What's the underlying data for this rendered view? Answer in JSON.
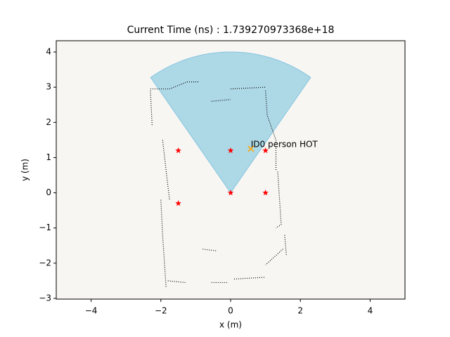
{
  "chart_data": {
    "type": "scatter",
    "title": "Current Time (ns) : 1.739270973368e+18",
    "xlabel": "x (m)",
    "ylabel": "y (m)",
    "xlim": [
      -5,
      5
    ],
    "ylim": [
      -3.02,
      4.32
    ],
    "xticks": [
      {
        "value": -4,
        "label": "−4"
      },
      {
        "value": -2,
        "label": "−2"
      },
      0,
      2,
      4
    ],
    "yticks": [
      {
        "value": -3,
        "label": "−3"
      },
      {
        "value": -2,
        "label": "−2"
      },
      {
        "value": -1,
        "label": "−1"
      },
      0,
      1,
      2,
      3,
      4
    ],
    "background": "#f7f6f2",
    "wedge": {
      "x": 0,
      "y": 0,
      "radius": 4,
      "theta1": 55,
      "theta2": 125,
      "color": "#add8e6"
    },
    "map": {
      "color": "#000000",
      "x": [
        -2.3,
        -2.25,
        null,
        -2.3,
        -1.75,
        -1.25,
        -0.9,
        null,
        -0.55,
        0,
        null,
        0,
        1.0,
        null,
        1.0,
        1.05,
        1.3,
        1.3,
        null,
        1.35,
        1.45,
        1.3,
        null,
        1.55,
        1.6,
        null,
        1.5,
        1.0,
        null,
        -1.95,
        -1.8,
        -1.75,
        null,
        -2.0,
        -1.95,
        -1.85,
        null,
        -1.8,
        -1.3,
        null,
        -0.55,
        -0.1,
        null,
        0.1,
        1.0,
        null,
        -0.8,
        -0.4
      ],
      "y": [
        2.9,
        1.9,
        null,
        2.95,
        2.95,
        3.15,
        3.15,
        null,
        2.6,
        2.65,
        null,
        2.95,
        3.0,
        null,
        2.9,
        2.2,
        1.5,
        0.65,
        null,
        0.6,
        -0.9,
        -1.0,
        null,
        -1.2,
        -1.8,
        null,
        -1.6,
        -2.05,
        null,
        1.5,
        0.2,
        -0.2,
        null,
        -0.2,
        -1.2,
        -2.7,
        null,
        -2.5,
        -2.55,
        null,
        -2.55,
        -2.55,
        null,
        -2.45,
        -2.4,
        null,
        -1.6,
        -1.65
      ]
    },
    "markers": {
      "color": "#ff0000",
      "x": [
        -1.5,
        0,
        1,
        0,
        1,
        -1.5
      ],
      "y": [
        1.2,
        1.2,
        1.2,
        0,
        0,
        -0.3
      ]
    },
    "person": {
      "color": "#ffa500",
      "x": [
        0.58
      ],
      "y": [
        1.25
      ],
      "label": "ID0 person HOT"
    }
  }
}
